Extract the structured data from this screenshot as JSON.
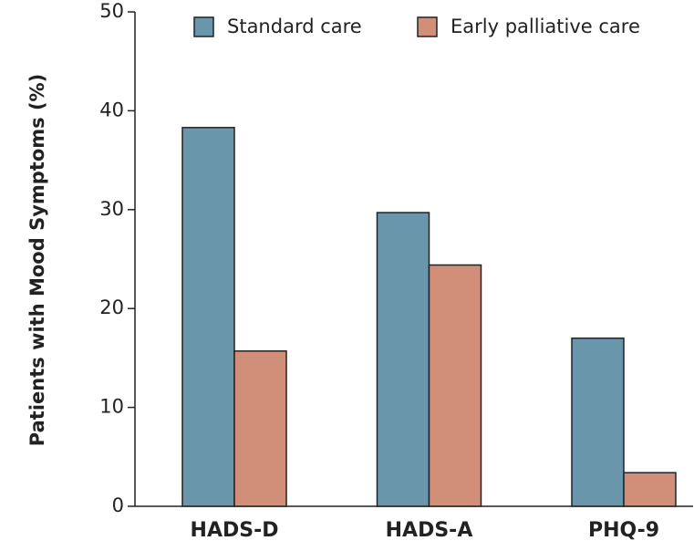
{
  "chart_data": {
    "type": "bar",
    "y_label": "Patients with Mood Symptoms (%)",
    "categories": [
      "HADS-D",
      "HADS-A",
      "PHQ-9"
    ],
    "series": [
      {
        "name": "Standard care",
        "color": "#6a96ac",
        "values": [
          38.3,
          29.7,
          17.0
        ]
      },
      {
        "name": "Early palliative care",
        "color": "#d18f7a",
        "values": [
          15.7,
          24.4,
          3.4
        ]
      }
    ],
    "ylim": [
      0,
      50
    ],
    "yticks": [
      0,
      10,
      20,
      30,
      40,
      50
    ]
  }
}
